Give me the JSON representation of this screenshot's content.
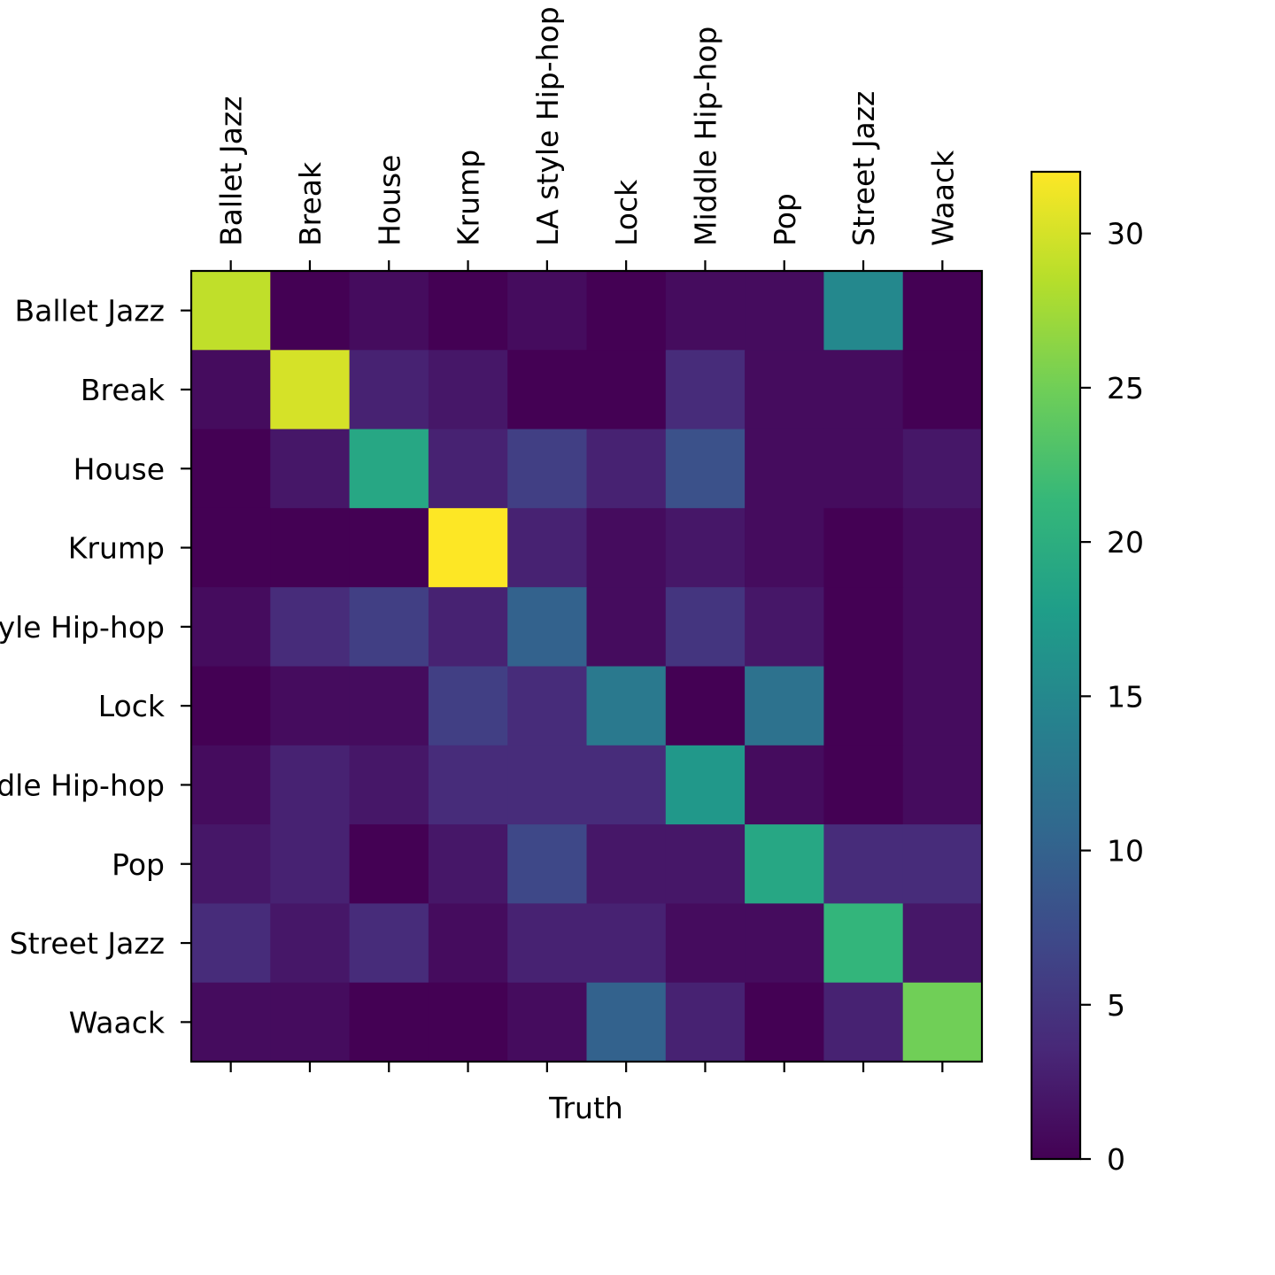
{
  "chart_data": {
    "type": "heatmap",
    "xlabel": "Truth",
    "ylabel": "",
    "x_categories": [
      "Ballet Jazz",
      "Break",
      "House",
      "Krump",
      "LA style Hip-hop",
      "Lock",
      "Middle Hip-hop",
      "Pop",
      "Street Jazz",
      "Waack"
    ],
    "y_categories": [
      "Ballet Jazz",
      "Break",
      "House",
      "Krump",
      "LA style Hip-hop",
      "Lock",
      "Middle Hip-hop",
      "Pop",
      "Street Jazz",
      "Waack"
    ],
    "x_tick_position": "top",
    "values": [
      [
        29,
        0,
        1,
        0,
        1,
        0,
        1,
        1,
        15,
        0
      ],
      [
        1,
        30,
        3,
        2,
        0,
        0,
        4,
        1,
        1,
        0
      ],
      [
        0,
        2,
        19,
        3,
        6,
        3,
        8,
        1,
        1,
        2
      ],
      [
        0,
        0,
        0,
        32,
        3,
        1,
        2,
        1,
        0,
        1
      ],
      [
        1,
        4,
        6,
        3,
        10,
        1,
        5,
        2,
        0,
        1
      ],
      [
        0,
        1,
        1,
        6,
        4,
        13,
        0,
        12,
        0,
        1
      ],
      [
        1,
        3,
        2,
        4,
        4,
        4,
        17,
        1,
        0,
        1
      ],
      [
        2,
        3,
        0,
        2,
        7,
        2,
        2,
        19,
        4,
        4
      ],
      [
        4,
        2,
        4,
        1,
        3,
        3,
        1,
        1,
        21,
        2
      ],
      [
        1,
        1,
        0,
        0,
        1,
        10,
        3,
        0,
        3,
        25
      ]
    ],
    "colorbar": {
      "range": [
        0,
        32
      ],
      "ticks": [
        0,
        5,
        10,
        15,
        20,
        25,
        30
      ],
      "colormap": "viridis"
    },
    "colors": {
      "viridis_stops": [
        "#440154",
        "#482878",
        "#3e4989",
        "#31688e",
        "#26828e",
        "#1f9e89",
        "#35b779",
        "#6ece58",
        "#b5de2b",
        "#fde725"
      ]
    }
  }
}
